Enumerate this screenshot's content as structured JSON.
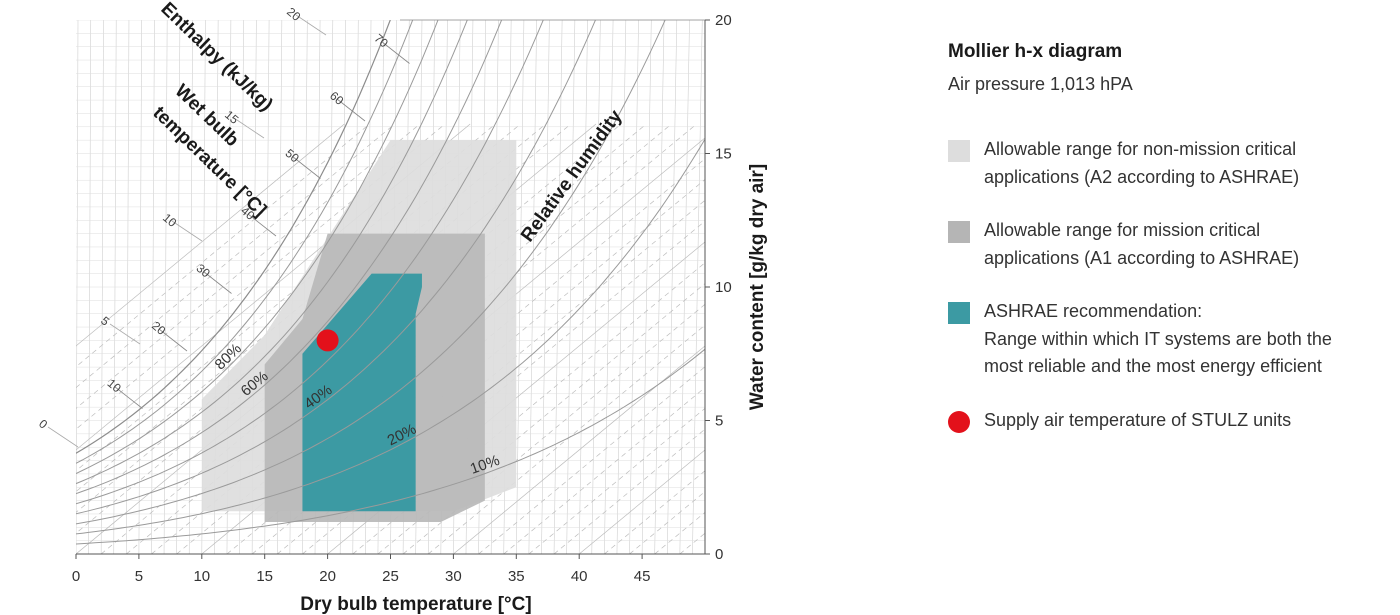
{
  "chart_data": {
    "type": "mollier-hx",
    "title": "Mollier h-x diagram",
    "subtitle": "Air pressure 1,013 hPA",
    "xlabel": "Dry bulb temperature [°C]",
    "ylabel": "Water content [g/kg dry air]",
    "enthalpy_label": "Enthalpy (kJ/kg)",
    "wetbulb_label_lines": [
      "Wet bulb",
      "temperature [°C]"
    ],
    "rh_label": "Relative humidity",
    "xlim": [
      0,
      50
    ],
    "ylim": [
      0,
      20
    ],
    "x_ticks": [
      0,
      5,
      10,
      15,
      20,
      25,
      30,
      35,
      40,
      45
    ],
    "y_ticks": [
      0,
      5,
      10,
      15,
      20
    ],
    "rh_lines_percent": [
      10,
      20,
      30,
      40,
      50,
      60,
      70,
      80,
      90,
      100
    ],
    "rh_labels": [
      "10%",
      "20%",
      "40%",
      "60%",
      "80%"
    ],
    "enthalpy_ticks": [
      10,
      20,
      30,
      40,
      50,
      60,
      70
    ],
    "wetbulb_ticks": [
      0,
      5,
      10,
      15,
      20
    ],
    "regions": [
      {
        "name": "Allowable range for non-mission critical applications (A2 according to ASHRAE)",
        "color": "#dddddd",
        "polygon": [
          [
            10,
            1.6
          ],
          [
            10,
            5.8
          ],
          [
            15,
            8.2
          ],
          [
            25,
            15.5
          ],
          [
            35,
            15.5
          ],
          [
            35,
            2.5
          ],
          [
            30,
            1.6
          ]
        ]
      },
      {
        "name": "Allowable range for mission critical applications (A1 according to ASHRAE)",
        "color": "#b8b8b8",
        "polygon": [
          [
            15,
            1.2
          ],
          [
            15,
            7.1
          ],
          [
            18,
            8.8
          ],
          [
            20,
            12
          ],
          [
            32.5,
            12
          ],
          [
            32.5,
            2
          ],
          [
            29,
            1.2
          ]
        ]
      },
      {
        "name": "ASHRAE recommendation",
        "color": "#3c9aa3",
        "polygon": [
          [
            18,
            1.6
          ],
          [
            18,
            7.5
          ],
          [
            23.5,
            10.5
          ],
          [
            27.5,
            10.5
          ],
          [
            27.5,
            10.0
          ],
          [
            27,
            9.0
          ],
          [
            27,
            1.6
          ]
        ]
      }
    ],
    "supply_point": {
      "x": 20,
      "y": 8,
      "color": "#e3111b"
    }
  },
  "legend": {
    "title": "Mollier h-x diagram",
    "subtitle": "Air pressure 1,013 hPA",
    "items": [
      {
        "type": "square",
        "color": "#dddddd",
        "lines": [
          "Allowable range for non-mission critical",
          "applications (A2 according to ASHRAE)"
        ]
      },
      {
        "type": "square",
        "color": "#b5b5b5",
        "lines": [
          "Allowable range for mission critical",
          "applications (A1 according to ASHRAE)"
        ]
      },
      {
        "type": "square",
        "color": "#3c9aa3",
        "lines": [
          "ASHRAE recommendation:",
          "Range within which IT systems are both the",
          "most reliable and the most energy efficient"
        ]
      },
      {
        "type": "dot",
        "color": "#e3111b",
        "lines": [
          "Supply air temperature of STULZ units"
        ]
      }
    ]
  }
}
